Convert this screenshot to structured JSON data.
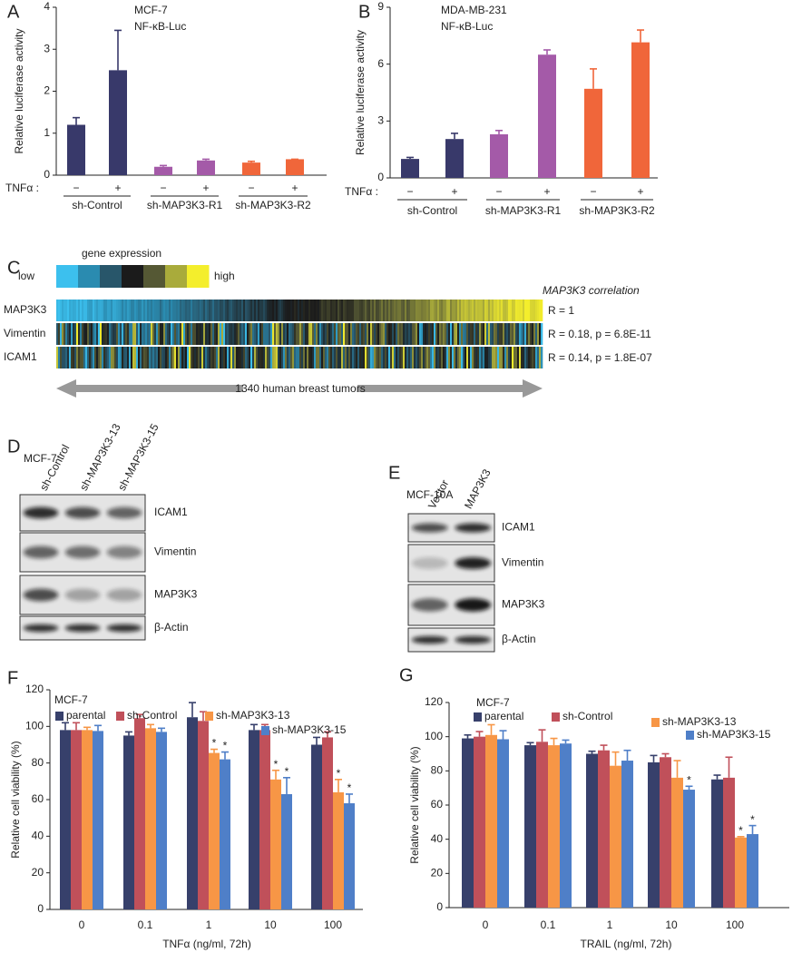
{
  "chart_data": [
    {
      "type": "bar",
      "panel": "A",
      "title": [
        "MCF-7",
        "NF-κB-Luc"
      ],
      "ylabel": "Relative luciferase activity",
      "ylim": [
        0,
        4
      ],
      "yticks": [
        0,
        1,
        2,
        3,
        4
      ],
      "x_prefix": "TNFα :",
      "groups": [
        {
          "name": "sh-Control",
          "color": "#38396a",
          "categories": [
            "−",
            "+"
          ],
          "values": [
            1.2,
            2.5
          ],
          "errors": [
            0.17,
            0.95
          ]
        },
        {
          "name": "sh-MAP3K3-R1",
          "color": "#a45aa8",
          "categories": [
            "−",
            "+"
          ],
          "values": [
            0.2,
            0.35
          ],
          "errors": [
            0.03,
            0.03
          ]
        },
        {
          "name": "sh-MAP3K3-R2",
          "color": "#f0663a",
          "categories": [
            "−",
            "+"
          ],
          "values": [
            0.3,
            0.38
          ],
          "errors": [
            0.03,
            0
          ]
        }
      ]
    },
    {
      "type": "bar",
      "panel": "B",
      "title": [
        "MDA-MB-231",
        "NF-κB-Luc"
      ],
      "ylabel": "Relative luciferase activity",
      "ylim": [
        0,
        9
      ],
      "yticks": [
        0,
        3,
        6,
        9
      ],
      "x_prefix": "TNFα :",
      "groups": [
        {
          "name": "sh-Control",
          "color": "#38396a",
          "categories": [
            "−",
            "+"
          ],
          "values": [
            1.0,
            2.05
          ],
          "errors": [
            0.08,
            0.3
          ]
        },
        {
          "name": "sh-MAP3K3-R1",
          "color": "#a45aa8",
          "categories": [
            "−",
            "+"
          ],
          "values": [
            2.3,
            6.5
          ],
          "errors": [
            0.2,
            0.25
          ]
        },
        {
          "name": "sh-MAP3K3-R2",
          "color": "#f0663a",
          "categories": [
            "−",
            "+"
          ],
          "values": [
            4.7,
            7.15
          ],
          "errors": [
            1.05,
            0.65
          ]
        }
      ]
    },
    {
      "type": "grouped_bar",
      "panel": "F",
      "label": "MCF-7",
      "xlabel": "TNFα (ng/ml, 72h)",
      "ylabel": "Relative cell viability (%)",
      "ylim": [
        0,
        120
      ],
      "yticks": [
        0,
        20,
        40,
        60,
        80,
        100,
        120
      ],
      "categories": [
        "0",
        "0.1",
        "1",
        "10",
        "100"
      ],
      "series": [
        {
          "name": "parental",
          "color": "#37406b",
          "values": [
            98,
            95,
            105,
            98,
            90
          ],
          "errors": [
            4,
            2,
            8,
            3,
            4
          ],
          "significance": [
            null,
            null,
            null,
            null,
            null
          ]
        },
        {
          "name": "sh-Control",
          "color": "#c0505a",
          "values": [
            98,
            104.5,
            103,
            98,
            94
          ],
          "errors": [
            4,
            2,
            5,
            3,
            3
          ],
          "significance": [
            null,
            null,
            null,
            null,
            null
          ]
        },
        {
          "name": "sh-MAP3K3-13",
          "color": "#f79646",
          "values": [
            98,
            99,
            85.5,
            71,
            64
          ],
          "errors": [
            1.5,
            2,
            2,
            5,
            7
          ],
          "significance": [
            null,
            null,
            "*",
            "*",
            "*"
          ]
        },
        {
          "name": "sh-MAP3K3-15",
          "color": "#4f7fc8",
          "values": [
            97.5,
            97,
            82,
            63,
            58
          ],
          "errors": [
            3,
            2,
            4,
            9,
            5
          ],
          "significance": [
            null,
            null,
            "*",
            "*",
            "*"
          ]
        }
      ]
    },
    {
      "type": "grouped_bar",
      "panel": "G",
      "label": "MCF-7",
      "xlabel": "TRAIL (ng/ml, 72h)",
      "ylabel": "Relative cell viability (%)",
      "ylim": [
        0,
        120
      ],
      "yticks": [
        0,
        20,
        40,
        60,
        80,
        100,
        120
      ],
      "categories": [
        "0",
        "0.1",
        "1",
        "10",
        "100"
      ],
      "series": [
        {
          "name": "parental",
          "color": "#37406b",
          "values": [
            99,
            95,
            90,
            85,
            75
          ],
          "errors": [
            2,
            1.5,
            1.5,
            4,
            2.5
          ],
          "significance": [
            null,
            null,
            null,
            null,
            null
          ]
        },
        {
          "name": "sh-Control",
          "color": "#c0505a",
          "values": [
            100,
            97,
            92,
            88,
            76
          ],
          "errors": [
            3,
            7,
            3,
            2,
            12
          ],
          "significance": [
            null,
            null,
            null,
            null,
            null
          ]
        },
        {
          "name": "sh-MAP3K3-13",
          "color": "#f79646",
          "values": [
            101,
            95,
            83,
            76,
            41
          ],
          "errors": [
            6,
            4,
            8,
            10,
            0.5
          ],
          "significance": [
            null,
            null,
            null,
            null,
            "*"
          ]
        },
        {
          "name": "sh-MAP3K3-15",
          "color": "#4f7fc8",
          "values": [
            98.5,
            96,
            86,
            69,
            43
          ],
          "errors": [
            5,
            2,
            6,
            2,
            5
          ],
          "significance": [
            null,
            null,
            null,
            "*",
            "*"
          ]
        }
      ]
    }
  ],
  "heatmap": {
    "panel": "C",
    "scale_title": "gene expression",
    "low": "low",
    "high": "high",
    "scale_colors": [
      "#3cc0ee",
      "#2a8bb0",
      "#28566a",
      "#1b1b1b",
      "#555834",
      "#a9ab3b",
      "#f4ee2c"
    ],
    "correlation_title": "MAP3K3 correlation",
    "rows": [
      {
        "gene": "MAP3K3",
        "stat": "R = 1"
      },
      {
        "gene": "Vimentin",
        "stat": "R = 0.18, p = 6.8E-11"
      },
      {
        "gene": "ICAM1",
        "stat": "R = 0.14, p = 1.8E-07"
      }
    ],
    "axis_label": "1340 human breast tumors"
  },
  "blots": [
    {
      "panel": "D",
      "cell_line": "MCF-7",
      "lanes": [
        "sh-Control",
        "sh-MAP3K3-13",
        "sh-MAP3K3-15"
      ],
      "rows": [
        "ICAM1",
        "Vimentin",
        "MAP3K3",
        "β-Actin"
      ]
    },
    {
      "panel": "E",
      "cell_line": "MCF-10A",
      "lanes": [
        "Vector",
        "MAP3K3"
      ],
      "rows": [
        "ICAM1",
        "Vimentin",
        "MAP3K3",
        "β-Actin"
      ]
    }
  ]
}
